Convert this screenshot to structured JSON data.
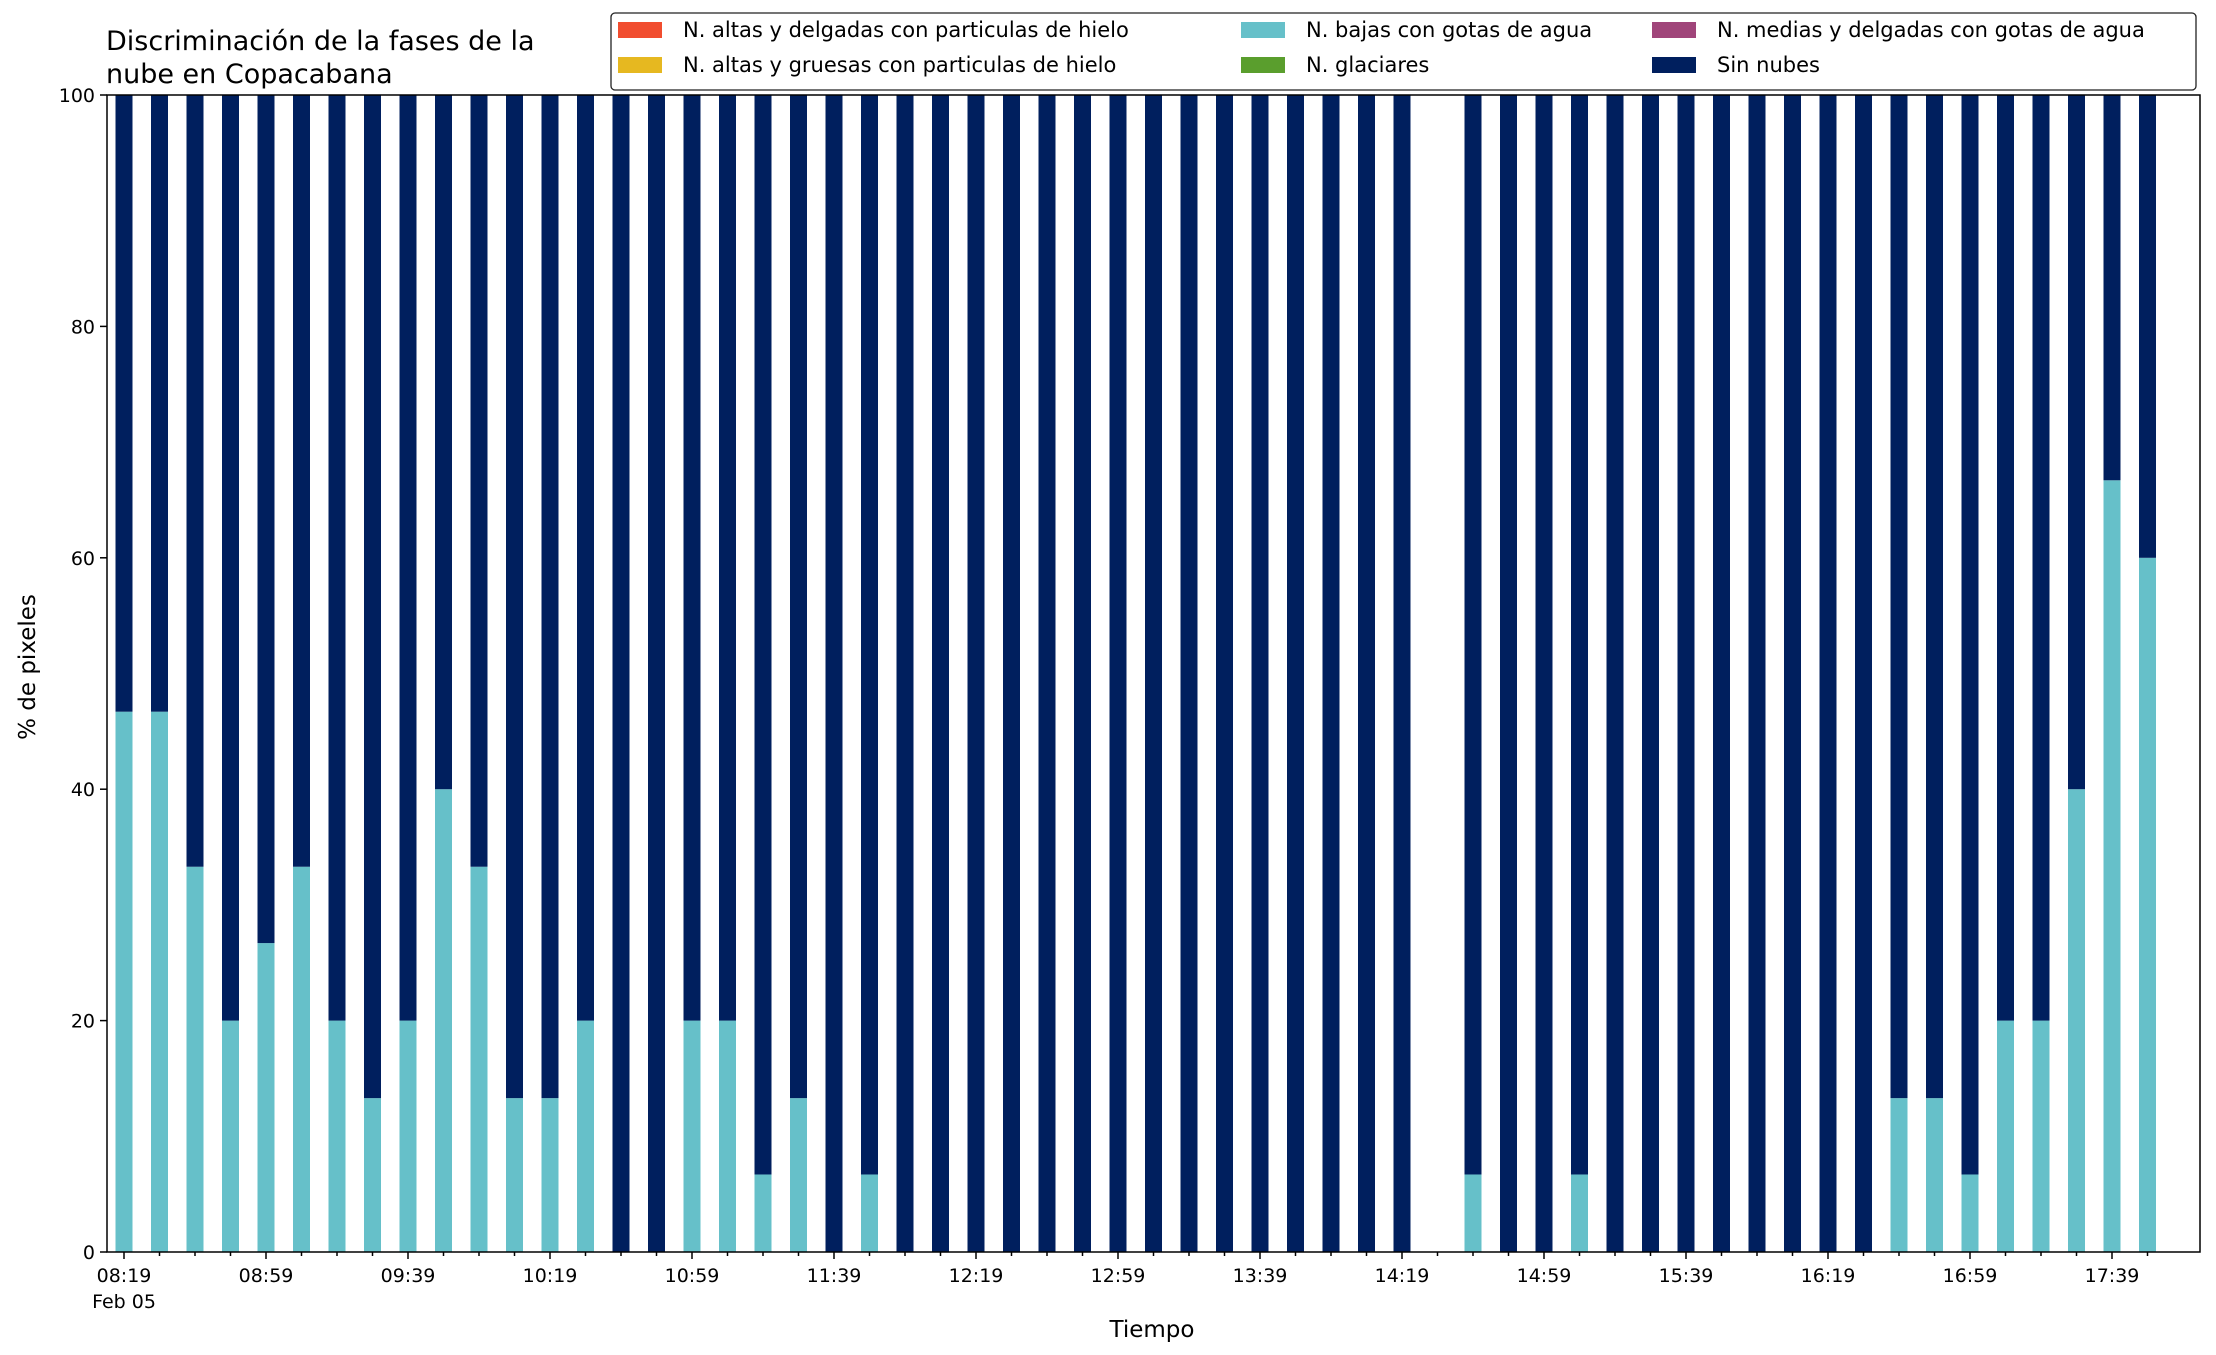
{
  "chart_data": {
    "type": "bar",
    "stacked": true,
    "title": [
      "Discriminación de la fases de la",
      "nube en Copacabana"
    ],
    "xlabel": "Tiempo",
    "ylabel": "% de pixeles",
    "ylim": [
      0,
      100
    ],
    "yticks": [
      0,
      20,
      40,
      60,
      80,
      100
    ],
    "x_tick_labels": [
      "08:19",
      "08:59",
      "09:39",
      "10:19",
      "10:59",
      "11:39",
      "12:19",
      "12:59",
      "13:39",
      "14:19",
      "14:59",
      "15:39",
      "16:19",
      "16:59",
      "17:39"
    ],
    "x_date_label": "Feb 05",
    "grid": false,
    "legend_position": "top-right",
    "legend_columns": 3,
    "colors": {
      "altas_delgadas_hielo": "#f14d2f",
      "altas_gruesas_hielo": "#e6b820",
      "bajas_agua": "#66c0c9",
      "glaciares": "#5a9e2d",
      "medias_delgadas_agua": "#a0457a",
      "sin_nubes": "#001f5e"
    },
    "categories": [
      "08:19",
      "08:29",
      "08:39",
      "08:49",
      "08:59",
      "09:09",
      "09:19",
      "09:29",
      "09:39",
      "09:49",
      "09:59",
      "10:09",
      "10:19",
      "10:29",
      "10:39",
      "10:49",
      "10:59",
      "11:09",
      "11:19",
      "11:29",
      "11:39",
      "11:49",
      "11:59",
      "12:09",
      "12:19",
      "12:29",
      "12:39",
      "12:49",
      "12:59",
      "13:09",
      "13:19",
      "13:29",
      "13:39",
      "13:49",
      "13:59",
      "14:09",
      "14:19",
      "14:29",
      "14:39",
      "14:49",
      "14:59",
      "15:09",
      "15:19",
      "15:29",
      "15:39",
      "15:49",
      "15:59",
      "16:09",
      "16:19",
      "16:29",
      "16:39",
      "16:49",
      "16:59",
      "17:09",
      "17:19",
      "17:29",
      "17:39",
      "17:49"
    ],
    "series": [
      {
        "name": "N. altas y delgadas con particulas de hielo",
        "color": "#f14d2f",
        "values": [
          0,
          0,
          0,
          0,
          0,
          0,
          0,
          0,
          0,
          0,
          0,
          0,
          0,
          0,
          0,
          0,
          0,
          0,
          0,
          0,
          0,
          0,
          0,
          0,
          0,
          0,
          0,
          0,
          0,
          0,
          0,
          0,
          0,
          0,
          0,
          0,
          0,
          null,
          0,
          0,
          0,
          0,
          0,
          0,
          0,
          0,
          0,
          0,
          0,
          0,
          0,
          0,
          0,
          0,
          0,
          0,
          0,
          0
        ]
      },
      {
        "name": "N. altas y gruesas con particulas de hielo",
        "color": "#e6b820",
        "values": [
          0,
          0,
          0,
          0,
          0,
          0,
          0,
          0,
          0,
          0,
          0,
          0,
          0,
          0,
          0,
          0,
          0,
          0,
          0,
          0,
          0,
          0,
          0,
          0,
          0,
          0,
          0,
          0,
          0,
          0,
          0,
          0,
          0,
          0,
          0,
          0,
          0,
          null,
          0,
          0,
          0,
          0,
          0,
          0,
          0,
          0,
          0,
          0,
          0,
          0,
          0,
          0,
          0,
          0,
          0,
          0,
          0,
          0
        ]
      },
      {
        "name": "N. bajas con gotas de agua",
        "color": "#66c0c9",
        "values": [
          46.7,
          46.7,
          33.3,
          20,
          26.7,
          33.3,
          20,
          13.3,
          20,
          40,
          33.3,
          13.3,
          13.3,
          20,
          0,
          0,
          20,
          20,
          6.7,
          13.3,
          0,
          6.7,
          0,
          0,
          0,
          0,
          0,
          0,
          0,
          0,
          0,
          0,
          0,
          0,
          0,
          0,
          0,
          null,
          6.7,
          0,
          0,
          6.7,
          0,
          0,
          0,
          0,
          0,
          0,
          0,
          0,
          13.3,
          13.3,
          6.7,
          20,
          20,
          40,
          66.7,
          60
        ]
      },
      {
        "name": "N. glaciares",
        "color": "#5a9e2d",
        "values": [
          0,
          0,
          0,
          0,
          0,
          0,
          0,
          0,
          0,
          0,
          0,
          0,
          0,
          0,
          0,
          0,
          0,
          0,
          0,
          0,
          0,
          0,
          0,
          0,
          0,
          0,
          0,
          0,
          0,
          0,
          0,
          0,
          0,
          0,
          0,
          0,
          0,
          null,
          0,
          0,
          0,
          0,
          0,
          0,
          0,
          0,
          0,
          0,
          0,
          0,
          0,
          0,
          0,
          0,
          0,
          0,
          0,
          0
        ]
      },
      {
        "name": "N. medias y delgadas con gotas de agua",
        "color": "#a0457a",
        "values": [
          0,
          0,
          0,
          0,
          0,
          0,
          0,
          0,
          0,
          0,
          0,
          0,
          0,
          0,
          0,
          0,
          0,
          0,
          0,
          0,
          0,
          0,
          0,
          0,
          0,
          0,
          0,
          0,
          0,
          0,
          0,
          0,
          0,
          0,
          0,
          0,
          0,
          null,
          0,
          0,
          0,
          0,
          0,
          0,
          0,
          0,
          0,
          0,
          0,
          0,
          0,
          0,
          0,
          0,
          0,
          0,
          0,
          0
        ]
      },
      {
        "name": "Sin nubes",
        "color": "#001f5e",
        "values": [
          53.3,
          53.3,
          66.7,
          80,
          73.3,
          66.7,
          80,
          86.7,
          80,
          60,
          66.7,
          86.7,
          86.7,
          80,
          100,
          100,
          80,
          80,
          93.3,
          86.7,
          100,
          93.3,
          100,
          100,
          100,
          100,
          100,
          100,
          100,
          100,
          100,
          100,
          100,
          100,
          100,
          100,
          100,
          null,
          93.3,
          100,
          100,
          93.3,
          100,
          100,
          100,
          100,
          100,
          100,
          100,
          100,
          86.7,
          86.7,
          93.3,
          80,
          80,
          60,
          33.3,
          40
        ]
      }
    ]
  }
}
